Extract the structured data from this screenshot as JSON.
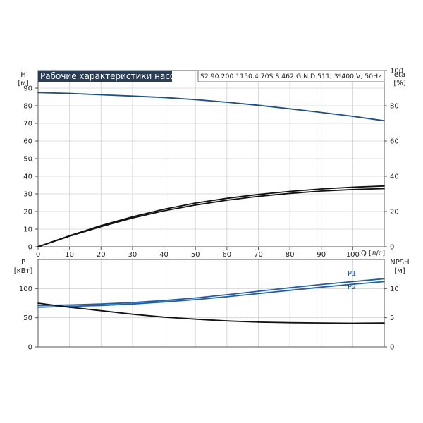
{
  "title": "Рабочие характеристики насоса",
  "subtitle": "S2.90.200.1150.4.70S.S.462.G.N.D.511, 3*400 V, 50Hz",
  "colors": {
    "pump_blue": "#1d4f86",
    "pump_black": "#111111",
    "power_blue": "#1f5fa8",
    "grid": "#cfcfcf",
    "title_bg": "#2b3d55"
  },
  "chart_data": [
    {
      "type": "line",
      "x_label": "Q [л/с]",
      "x_ticks": [
        "0",
        "10",
        "20",
        "30",
        "40",
        "50",
        "60",
        "70",
        "80",
        "90",
        "100"
      ],
      "xlim": [
        0,
        110
      ],
      "left_axis": {
        "label_top": "H",
        "label_unit": "[м]",
        "ticks": [
          "0",
          "10",
          "20",
          "30",
          "40",
          "50",
          "60",
          "70",
          "80",
          "90"
        ],
        "ylim": [
          0,
          100
        ]
      },
      "right_axis": {
        "label_top": "eta",
        "label_unit": "[%]",
        "ticks": [
          "0",
          "20",
          "40",
          "60",
          "80",
          "100"
        ],
        "ylim": [
          0,
          100
        ]
      },
      "grid": true,
      "series": [
        {
          "axis": "left",
          "color": "#1d4f86",
          "x": [
            0,
            10,
            20,
            30,
            40,
            50,
            60,
            70,
            80,
            90,
            100,
            110
          ],
          "y": [
            87.5,
            87,
            86.2,
            85.5,
            84.7,
            83.5,
            82,
            80.3,
            78.3,
            76.2,
            74,
            71.5
          ]
        },
        {
          "axis": "left",
          "color": "#111111",
          "x": [
            0,
            10,
            20,
            30,
            40,
            50,
            60,
            70,
            80,
            90,
            100,
            110
          ],
          "y": [
            0,
            6.3,
            12,
            17,
            21.3,
            24.8,
            27.5,
            29.7,
            31.4,
            32.8,
            33.8,
            34.5
          ]
        },
        {
          "axis": "left",
          "color": "#111111",
          "x": [
            0,
            10,
            20,
            30,
            40,
            50,
            60,
            70,
            80,
            90,
            100,
            110
          ],
          "y": [
            0,
            6,
            11.4,
            16.3,
            20.4,
            23.7,
            26.4,
            28.6,
            30.3,
            31.6,
            32.5,
            33
          ]
        }
      ]
    },
    {
      "type": "line",
      "xlim": [
        0,
        110
      ],
      "left_axis": {
        "label_top": "P",
        "label_unit": "[кВт]",
        "ticks": [
          "0",
          "50",
          "100"
        ],
        "ylim": [
          0,
          150
        ]
      },
      "right_axis": {
        "label_top": "NPSH",
        "label_unit": "[м]",
        "ticks": [
          "0",
          "5",
          "10"
        ],
        "ylim": [
          0,
          15
        ]
      },
      "grid": true,
      "series": [
        {
          "name": "P1",
          "axis": "left",
          "color": "#1f5fa8",
          "x": [
            0,
            10,
            20,
            30,
            40,
            50,
            60,
            70,
            80,
            90,
            100,
            110
          ],
          "y": [
            71,
            72,
            73.5,
            76,
            79.5,
            84,
            89.5,
            95.5,
            101.5,
            107,
            112,
            117
          ]
        },
        {
          "name": "P2",
          "axis": "left",
          "color": "#1f5fa8",
          "x": [
            0,
            10,
            20,
            30,
            40,
            50,
            60,
            70,
            80,
            90,
            100,
            110
          ],
          "y": [
            68,
            69.5,
            71,
            73.5,
            77,
            81,
            86,
            91.5,
            97,
            102.5,
            107.5,
            112
          ]
        },
        {
          "axis": "right",
          "color": "#111111",
          "x": [
            0,
            10,
            20,
            30,
            40,
            50,
            60,
            70,
            80,
            90,
            100,
            110
          ],
          "y": [
            7.5,
            6.8,
            6.2,
            5.6,
            5.1,
            4.75,
            4.45,
            4.25,
            4.15,
            4.1,
            4.05,
            4.1
          ]
        }
      ]
    }
  ]
}
